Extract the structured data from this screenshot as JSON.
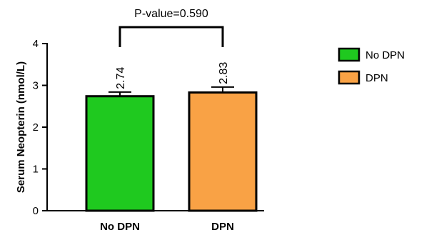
{
  "chart_data": {
    "type": "bar",
    "categories": [
      "No DPN",
      "DPN"
    ],
    "values": [
      2.74,
      2.83
    ],
    "error_upper": [
      2.84,
      2.96
    ],
    "value_labels": [
      "2.74",
      "2.83"
    ],
    "colors": [
      "#1FC91F",
      "#F9A245"
    ],
    "ylabel": "Serum Neopterin  (nmol/L)",
    "ylim": [
      0,
      4
    ],
    "yticks": [
      0,
      1,
      2,
      3,
      4
    ],
    "ytick_labels": [
      "0",
      "1",
      "2",
      "3",
      "4"
    ],
    "significance": {
      "label": "P-value=0.590",
      "between": [
        "No DPN",
        "DPN"
      ]
    },
    "legend": {
      "position": "right",
      "entries": [
        {
          "label": "No DPN",
          "color": "#1FC91F"
        },
        {
          "label": "DPN",
          "color": "#F9A245"
        }
      ]
    },
    "grid": false
  }
}
